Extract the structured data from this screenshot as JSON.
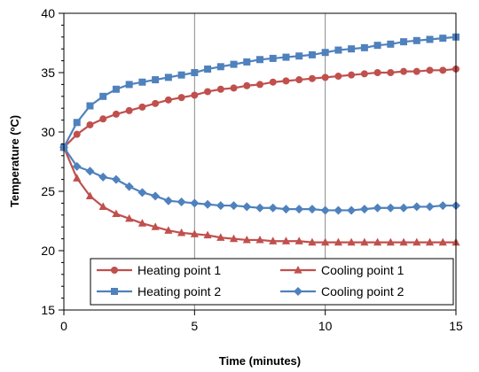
{
  "chart_data": {
    "type": "line",
    "title": "",
    "xlabel": "Time (minutes)",
    "ylabel": "Temperature (ºC)",
    "xlim": [
      0,
      15
    ],
    "ylim": [
      15,
      40
    ],
    "xticks": [
      0,
      5,
      10,
      15
    ],
    "yticks": [
      15,
      20,
      25,
      30,
      35,
      40
    ],
    "grid": "vertical",
    "legend_position": "bottom-center",
    "x": [
      0,
      0.5,
      1,
      1.5,
      2,
      2.5,
      3,
      3.5,
      4,
      4.5,
      5,
      5.5,
      6,
      6.5,
      7,
      7.5,
      8,
      8.5,
      9,
      9.5,
      10,
      10.5,
      11,
      11.5,
      12,
      12.5,
      13,
      13.5,
      14,
      14.5,
      15
    ],
    "series": [
      {
        "name": "Heating point 1",
        "color": "#C0504D",
        "marker": "circle",
        "values": [
          28.7,
          29.8,
          30.6,
          31.1,
          31.5,
          31.8,
          32.1,
          32.4,
          32.7,
          32.9,
          33.1,
          33.4,
          33.6,
          33.7,
          33.9,
          34.0,
          34.2,
          34.3,
          34.4,
          34.5,
          34.6,
          34.7,
          34.8,
          34.9,
          35.0,
          35.0,
          35.1,
          35.1,
          35.2,
          35.2,
          35.3
        ]
      },
      {
        "name": "Cooling point 1",
        "color": "#C0504D",
        "marker": "triangle",
        "values": [
          28.7,
          26.1,
          24.6,
          23.7,
          23.1,
          22.7,
          22.3,
          22.0,
          21.7,
          21.5,
          21.4,
          21.3,
          21.1,
          21.0,
          20.9,
          20.9,
          20.8,
          20.8,
          20.8,
          20.7,
          20.7,
          20.7,
          20.7,
          20.7,
          20.7,
          20.7,
          20.7,
          20.7,
          20.7,
          20.7,
          20.7
        ]
      },
      {
        "name": "Heating point 2",
        "color": "#4F81BD",
        "marker": "square",
        "values": [
          28.7,
          30.8,
          32.2,
          33.0,
          33.6,
          34.0,
          34.2,
          34.4,
          34.6,
          34.8,
          35.0,
          35.3,
          35.5,
          35.7,
          35.9,
          36.1,
          36.2,
          36.3,
          36.4,
          36.5,
          36.7,
          36.9,
          37.0,
          37.1,
          37.3,
          37.4,
          37.6,
          37.7,
          37.8,
          37.9,
          38.0
        ]
      },
      {
        "name": "Cooling point 2",
        "color": "#4F81BD",
        "marker": "diamond",
        "values": [
          28.7,
          27.1,
          26.7,
          26.2,
          26.0,
          25.4,
          24.9,
          24.6,
          24.2,
          24.1,
          24.0,
          23.9,
          23.8,
          23.8,
          23.7,
          23.6,
          23.6,
          23.5,
          23.5,
          23.5,
          23.4,
          23.4,
          23.4,
          23.5,
          23.6,
          23.6,
          23.6,
          23.7,
          23.7,
          23.8,
          23.8
        ]
      }
    ]
  }
}
